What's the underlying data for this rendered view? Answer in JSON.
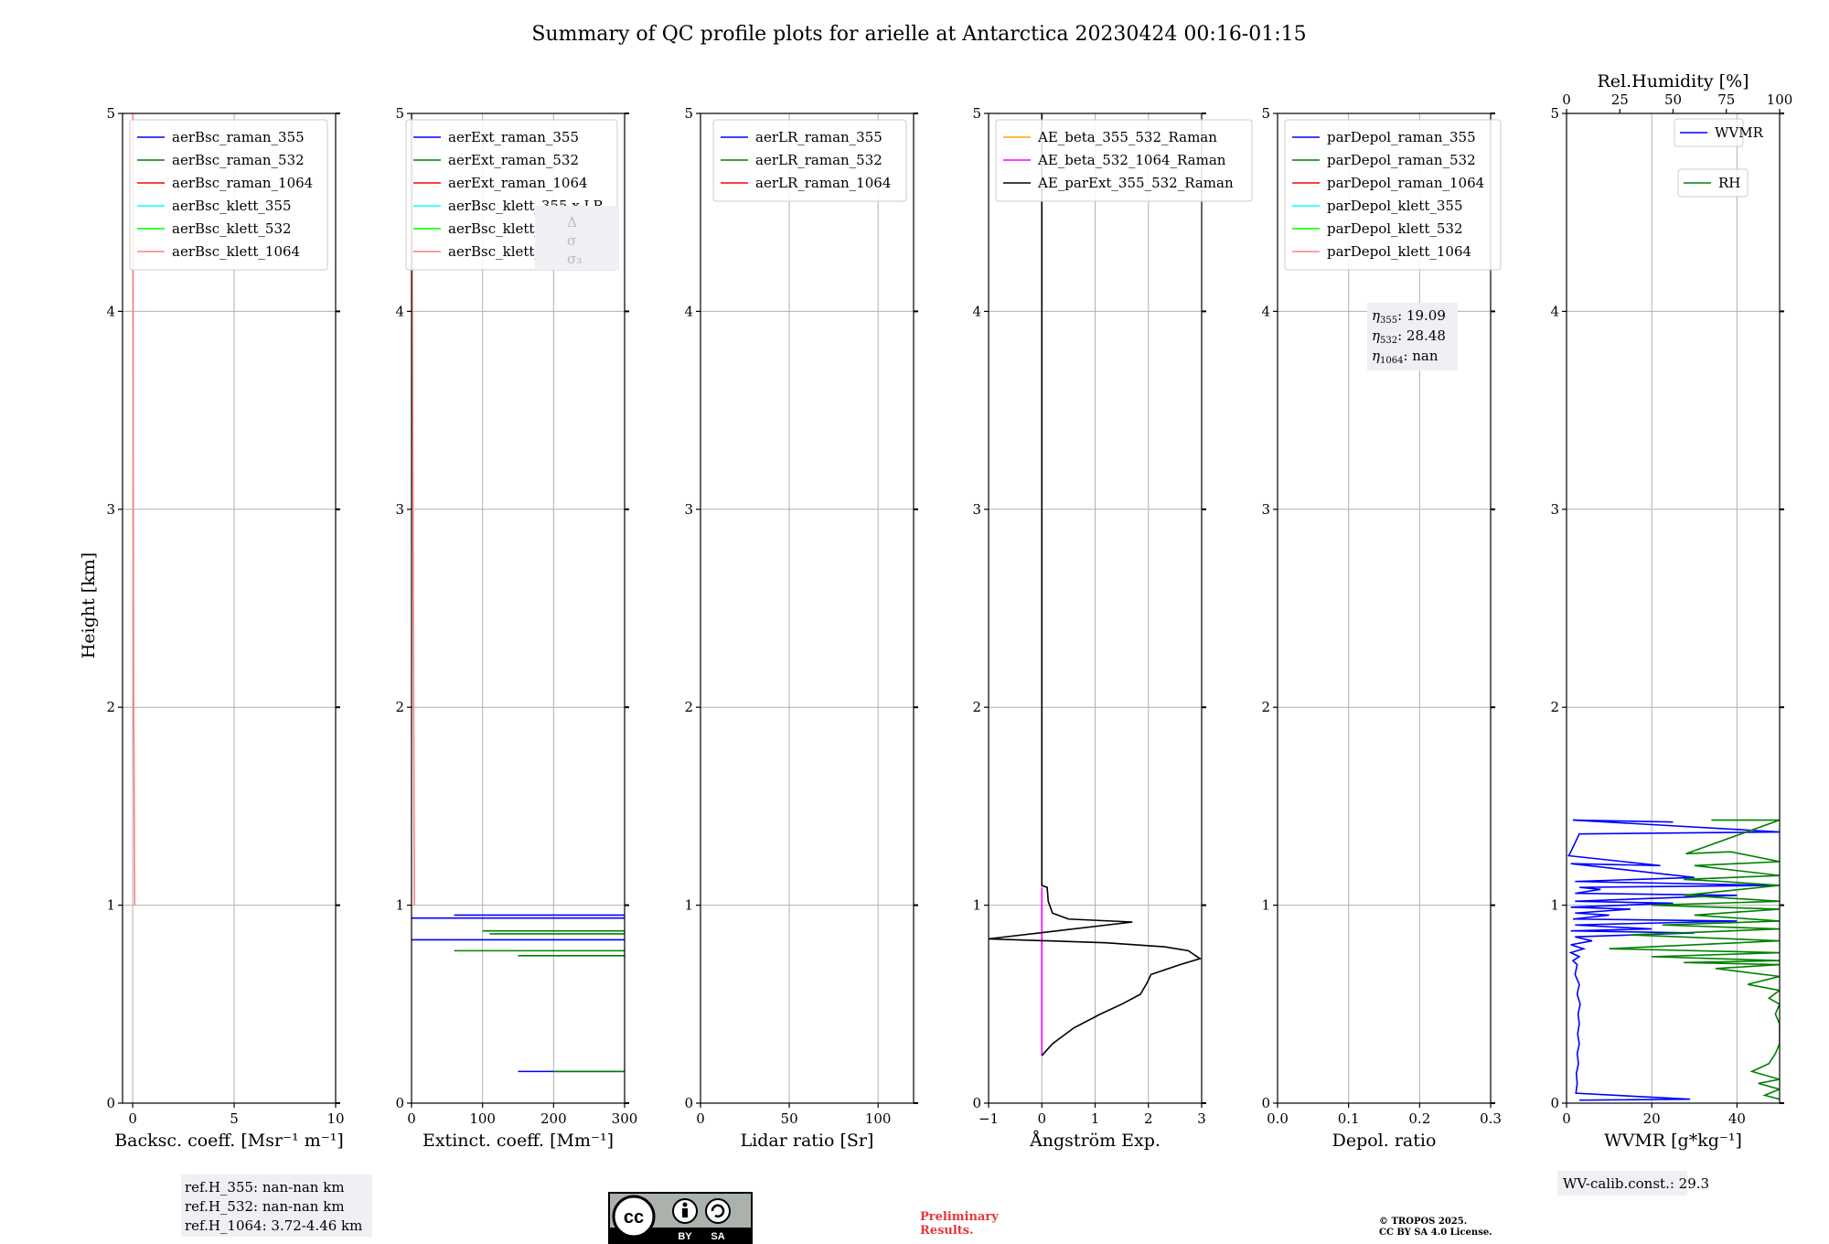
{
  "figure": {
    "title": "Summary of QC profile plots for arielle at Antarctica 20230424 00:16-01:15",
    "ylabel": "Height [km]",
    "ref_info": [
      "ref.H_355: nan-nan km",
      "ref.H_532: nan-nan km",
      "ref.H_1064: 3.72-4.46 km"
    ],
    "preliminary": [
      "Preliminary",
      "Results."
    ],
    "copyright": [
      "© TROPOS 2025.",
      "CC BY SA 4.0 License."
    ],
    "cc_badge": {
      "by": "BY",
      "sa": "SA"
    },
    "wv_calib": "WV-calib.const.: 29.3",
    "eta_box": [
      {
        "sym": "η",
        "sub": "355",
        "value": ": 19.09"
      },
      {
        "sym": "η",
        "sub": "532",
        "value": ": 28.48"
      },
      {
        "sym": "η",
        "sub": "1064",
        "value": ": nan"
      }
    ],
    "hidden_stats": [
      "Δ",
      "σ",
      "σ₃"
    ]
  },
  "chart_data": [
    {
      "type": "line",
      "id": "bsc",
      "xlabel": "Backsc. coeff. [Msr⁻¹ m⁻¹]",
      "xlim": [
        -0.5,
        10
      ],
      "xticks": [
        0,
        5,
        10
      ],
      "ylim": [
        0,
        5
      ],
      "yticks": [
        0,
        1,
        2,
        3,
        4,
        5
      ],
      "grid": true,
      "legend": "top-left",
      "series": [
        {
          "name": "aerBsc_raman_355",
          "color": "#0000ff",
          "points": []
        },
        {
          "name": "aerBsc_raman_532",
          "color": "#008000",
          "points": []
        },
        {
          "name": "aerBsc_raman_1064",
          "color": "#ff0000",
          "points": []
        },
        {
          "name": "aerBsc_klett_355",
          "color": "#00ffff",
          "points": []
        },
        {
          "name": "aerBsc_klett_532",
          "color": "#00ff00",
          "points": []
        },
        {
          "name": "aerBsc_klett_1064",
          "color": "#ff8080",
          "points": [
            [
              0.1,
              1.0
            ],
            [
              0.05,
              2.0
            ],
            [
              0.03,
              3.0
            ],
            [
              0.02,
              4.0
            ],
            [
              0.01,
              5.0
            ]
          ]
        }
      ]
    },
    {
      "type": "line",
      "id": "ext",
      "xlabel": "Extinct. coeff. [Mm⁻¹]",
      "xlim": [
        0,
        300
      ],
      "xticks": [
        0,
        100,
        200,
        300
      ],
      "ylim": [
        0,
        5
      ],
      "yticks": [
        0,
        1,
        2,
        3,
        4,
        5
      ],
      "grid": true,
      "legend": "top-right",
      "series": [
        {
          "name": "aerExt_raman_355",
          "color": "#0000ff",
          "segments": [
            [
              [
                60,
                0.95
              ],
              [
                300,
                0.95
              ]
            ],
            [
              [
                0,
                0.935
              ],
              [
                300,
                0.935
              ]
            ],
            [
              [
                0,
                0.825
              ],
              [
                300,
                0.825
              ]
            ],
            [
              [
                150,
                0.16
              ],
              [
                300,
                0.16
              ]
            ]
          ]
        },
        {
          "name": "aerExt_raman_532",
          "color": "#008000",
          "segments": [
            [
              [
                100,
                0.87
              ],
              [
                300,
                0.87
              ]
            ],
            [
              [
                110,
                0.855
              ],
              [
                300,
                0.855
              ]
            ],
            [
              [
                60,
                0.77
              ],
              [
                300,
                0.77
              ]
            ],
            [
              [
                150,
                0.745
              ],
              [
                300,
                0.745
              ]
            ],
            [
              [
                200,
                0.16
              ],
              [
                300,
                0.16
              ]
            ]
          ]
        },
        {
          "name": "aerExt_raman_1064",
          "color": "#ff0000",
          "segments": []
        },
        {
          "name": "aerBsc_klett_355 x LR",
          "color": "#00ffff",
          "segments": []
        },
        {
          "name": "aerBsc_klett_532 x LR",
          "color": "#00ff00",
          "segments": []
        },
        {
          "name": "aerBsc_klett_1064 x LR",
          "color": "#ff8080",
          "segments": [
            [
              [
                4,
                1.0
              ],
              [
                0.2,
                5.0
              ]
            ]
          ]
        }
      ]
    },
    {
      "type": "line",
      "id": "lr",
      "xlabel": "Lidar ratio [Sr]",
      "xlim": [
        0,
        120
      ],
      "xticks": [
        0,
        50,
        100
      ],
      "ylim": [
        0,
        5
      ],
      "yticks": [
        0,
        1,
        2,
        3,
        4,
        5
      ],
      "grid": true,
      "legend": "top-right",
      "series": [
        {
          "name": "aerLR_raman_355",
          "color": "#0000ff",
          "points": []
        },
        {
          "name": "aerLR_raman_532",
          "color": "#008000",
          "points": []
        },
        {
          "name": "aerLR_raman_1064",
          "color": "#ff0000",
          "points": []
        }
      ]
    },
    {
      "type": "line",
      "id": "ae",
      "xlabel": "Ångström Exp.",
      "xlim": [
        -1,
        3
      ],
      "xticks": [
        -1,
        0,
        1,
        2,
        3
      ],
      "ylim": [
        0,
        5
      ],
      "yticks": [
        0,
        1,
        2,
        3,
        4,
        5
      ],
      "grid": true,
      "legend": "top-left",
      "series": [
        {
          "name": "AE_beta_355_532_Raman",
          "color": "#ffa500",
          "points": []
        },
        {
          "name": "AE_beta_532_1064_Raman",
          "color": "#ff00ff",
          "points": [
            [
              0,
              0.24
            ],
            [
              0,
              1.09
            ]
          ]
        },
        {
          "name": "AE_parExt_355_532_Raman",
          "color": "#000000",
          "points": [
            [
              0,
              5.0
            ],
            [
              0,
              1.1
            ],
            [
              0.1,
              1.09
            ],
            [
              0.12,
              1.02
            ],
            [
              0.2,
              0.96
            ],
            [
              0.5,
              0.93
            ],
            [
              1.7,
              0.915
            ],
            [
              -1,
              0.83
            ],
            [
              1.2,
              0.81
            ],
            [
              2.3,
              0.79
            ],
            [
              2.75,
              0.77
            ],
            [
              2.97,
              0.73
            ],
            [
              2.6,
              0.7
            ],
            [
              2.05,
              0.65
            ],
            [
              1.98,
              0.61
            ],
            [
              1.85,
              0.55
            ],
            [
              1.5,
              0.5
            ],
            [
              1.1,
              0.45
            ],
            [
              0.6,
              0.38
            ],
            [
              0.2,
              0.3
            ],
            [
              0,
              0.24
            ]
          ]
        }
      ]
    },
    {
      "type": "line",
      "id": "depol",
      "xlabel": "Depol. ratio",
      "xlim": [
        0,
        0.3
      ],
      "xticks": [
        0.0,
        0.1,
        0.2,
        0.3
      ],
      "xtick_labels": [
        "0.0",
        "0.1",
        "0.2",
        "0.3"
      ],
      "ylim": [
        0,
        5
      ],
      "yticks": [
        0,
        1,
        2,
        3,
        4,
        5
      ],
      "grid": true,
      "legend": "top-left",
      "series": [
        {
          "name": "parDepol_raman_355",
          "color": "#0000ff",
          "points": []
        },
        {
          "name": "parDepol_raman_532",
          "color": "#008000",
          "points": []
        },
        {
          "name": "parDepol_raman_1064",
          "color": "#ff0000",
          "points": []
        },
        {
          "name": "parDepol_klett_355",
          "color": "#00ffff",
          "points": []
        },
        {
          "name": "parDepol_klett_532",
          "color": "#00ff00",
          "points": []
        },
        {
          "name": "parDepol_klett_1064",
          "color": "#ff8080",
          "points": []
        }
      ]
    },
    {
      "type": "line",
      "id": "wv",
      "xlabel": "WVMR [g*kg⁻¹]",
      "xlim": [
        0,
        50
      ],
      "xticks": [
        0,
        20,
        40
      ],
      "x2label": "Rel.Humidity [%]",
      "x2lim": [
        0,
        100
      ],
      "x2ticks": [
        0,
        25,
        50,
        75,
        100
      ],
      "ylim": [
        0,
        5
      ],
      "yticks": [
        0,
        1,
        2,
        3,
        4,
        5
      ],
      "grid": true,
      "legend": "top-right",
      "series": [
        {
          "name": "WVMR",
          "color": "#0000ff",
          "axis": "x",
          "points": [
            [
              25,
              1.42
            ],
            [
              1.5,
              1.43
            ],
            [
              50,
              1.37
            ],
            [
              3,
              1.36
            ],
            [
              1,
              1.27
            ],
            [
              0.5,
              1.25
            ],
            [
              22,
              1.2
            ],
            [
              1,
              1.21
            ],
            [
              30,
              1.14
            ],
            [
              2,
              1.12
            ],
            [
              48,
              1.1
            ],
            [
              3,
              1.09
            ],
            [
              8,
              1.08
            ],
            [
              2,
              1.06
            ],
            [
              40,
              1.05
            ],
            [
              2,
              1.02
            ],
            [
              25,
              1.01
            ],
            [
              1,
              0.99
            ],
            [
              15,
              0.98
            ],
            [
              2,
              0.96
            ],
            [
              10,
              0.95
            ],
            [
              1.5,
              0.93
            ],
            [
              40,
              0.92
            ],
            [
              2,
              0.9
            ],
            [
              20,
              0.88
            ],
            [
              1,
              0.87
            ],
            [
              30,
              0.86
            ],
            [
              2,
              0.84
            ],
            [
              6,
              0.82
            ],
            [
              1,
              0.8
            ],
            [
              4,
              0.78
            ],
            [
              1,
              0.76
            ],
            [
              3,
              0.74
            ],
            [
              1.5,
              0.72
            ],
            [
              2.5,
              0.7
            ],
            [
              2,
              0.65
            ],
            [
              3,
              0.6
            ],
            [
              2.5,
              0.55
            ],
            [
              3.2,
              0.5
            ],
            [
              2.7,
              0.45
            ],
            [
              3,
              0.4
            ],
            [
              2.6,
              0.35
            ],
            [
              3,
              0.3
            ],
            [
              2.5,
              0.25
            ],
            [
              2.8,
              0.2
            ],
            [
              2.3,
              0.15
            ],
            [
              2.5,
              0.1
            ],
            [
              2.2,
              0.05
            ],
            [
              29,
              0.02
            ],
            [
              3,
              0.015
            ]
          ]
        },
        {
          "name": "RH",
          "color": "#008000",
          "axis": "x2",
          "points": [
            [
              68,
              1.43
            ],
            [
              100,
              1.43
            ],
            [
              56,
              1.26
            ],
            [
              77,
              1.27
            ],
            [
              100,
              1.22
            ],
            [
              60,
              1.2
            ],
            [
              100,
              1.15
            ],
            [
              55,
              1.13
            ],
            [
              73,
              1.12
            ],
            [
              100,
              1.1
            ],
            [
              55,
              1.05
            ],
            [
              100,
              1.02
            ],
            [
              40,
              1.0
            ],
            [
              100,
              0.98
            ],
            [
              60,
              0.95
            ],
            [
              100,
              0.92
            ],
            [
              45,
              0.9
            ],
            [
              100,
              0.88
            ],
            [
              30,
              0.85
            ],
            [
              100,
              0.82
            ],
            [
              20,
              0.78
            ],
            [
              100,
              0.76
            ],
            [
              40,
              0.74
            ],
            [
              100,
              0.72
            ],
            [
              55,
              0.71
            ],
            [
              100,
              0.7
            ],
            [
              70,
              0.68
            ],
            [
              100,
              0.64
            ],
            [
              85,
              0.6
            ],
            [
              100,
              0.57
            ],
            [
              95,
              0.53
            ],
            [
              100,
              0.5
            ],
            [
              98,
              0.45
            ],
            [
              100,
              0.4
            ],
            [
              100,
              0.3
            ],
            [
              98,
              0.25
            ],
            [
              95,
              0.2
            ],
            [
              87,
              0.16
            ],
            [
              100,
              0.12
            ],
            [
              90,
              0.1
            ],
            [
              100,
              0.07
            ],
            [
              93,
              0.04
            ],
            [
              100,
              0.02
            ]
          ]
        }
      ]
    }
  ]
}
